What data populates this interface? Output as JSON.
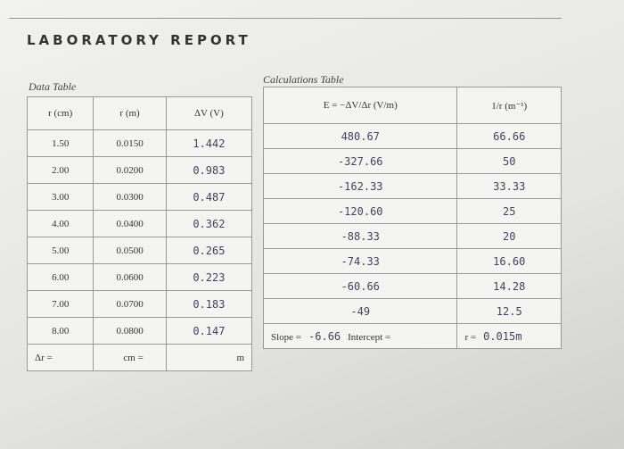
{
  "header": {
    "title": "LABORATORY REPORT"
  },
  "data_table": {
    "title": "Data Table",
    "columns": [
      "r (cm)",
      "r (m)",
      "ΔV (V)"
    ],
    "rows": [
      [
        "1.50",
        "0.0150",
        "1.442"
      ],
      [
        "2.00",
        "0.0200",
        "0.983"
      ],
      [
        "3.00",
        "0.0300",
        "0.487"
      ],
      [
        "4.00",
        "0.0400",
        "0.362"
      ],
      [
        "5.00",
        "0.0500",
        "0.265"
      ],
      [
        "6.00",
        "0.0600",
        "0.223"
      ],
      [
        "7.00",
        "0.0700",
        "0.183"
      ],
      [
        "8.00",
        "0.0800",
        "0.147"
      ]
    ],
    "footer": [
      "Δr =",
      "cm =",
      "m"
    ]
  },
  "calc_table": {
    "title": "Calculations Table",
    "columns": [
      "E = −ΔV/Δr (V/m)",
      "1/r (m⁻¹)"
    ],
    "rows": [
      [
        "480.67",
        "66.66"
      ],
      [
        "-327.66",
        "50"
      ],
      [
        "-162.33",
        "33.33"
      ],
      [
        "-120.60",
        "25"
      ],
      [
        "-88.33",
        "20"
      ],
      [
        "-74.33",
        "16.60"
      ],
      [
        "-60.66",
        "14.28"
      ],
      [
        "-49",
        "12.5"
      ]
    ],
    "footer": {
      "slope_label": "Slope =",
      "slope": "-6.66",
      "intercept_label": "Intercept =",
      "r_label": "r =",
      "r": "0.015m"
    }
  }
}
